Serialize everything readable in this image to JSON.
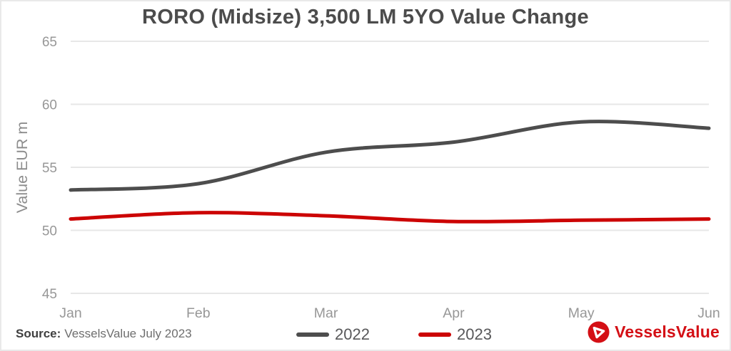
{
  "title": "RORO (Midsize) 3,500 LM 5YO Value Change",
  "chart_data": {
    "type": "line",
    "x": [
      "Jan",
      "Feb",
      "Mar",
      "Apr",
      "May",
      "Jun"
    ],
    "series": [
      {
        "name": "2022",
        "color": "#4d4d4d",
        "values": [
          53.2,
          53.7,
          56.2,
          57.0,
          58.6,
          58.1
        ]
      },
      {
        "name": "2023",
        "color": "#cc0404",
        "values": [
          50.9,
          51.4,
          51.15,
          50.7,
          50.8,
          50.9
        ]
      }
    ],
    "title": "RORO (Midsize) 3,500 LM 5YO Value Change",
    "xlabel": "",
    "ylabel": "Value EUR m",
    "ylim": [
      45,
      65
    ],
    "yticks": [
      65,
      60,
      55,
      50,
      45
    ],
    "grid": "horizontal",
    "gridline_color": "#e7e7e7",
    "tick_label_color": "#979797",
    "axis_label_color": "#8d8d8d",
    "legend_position": "bottom"
  },
  "footer": {
    "source_label": "Source:",
    "source_text": "VesselsValue July 2023"
  },
  "logo": {
    "text": "VesselsValue",
    "color": "#d40f15",
    "icon": "vesselsvalue-circle-triangle-icon"
  }
}
